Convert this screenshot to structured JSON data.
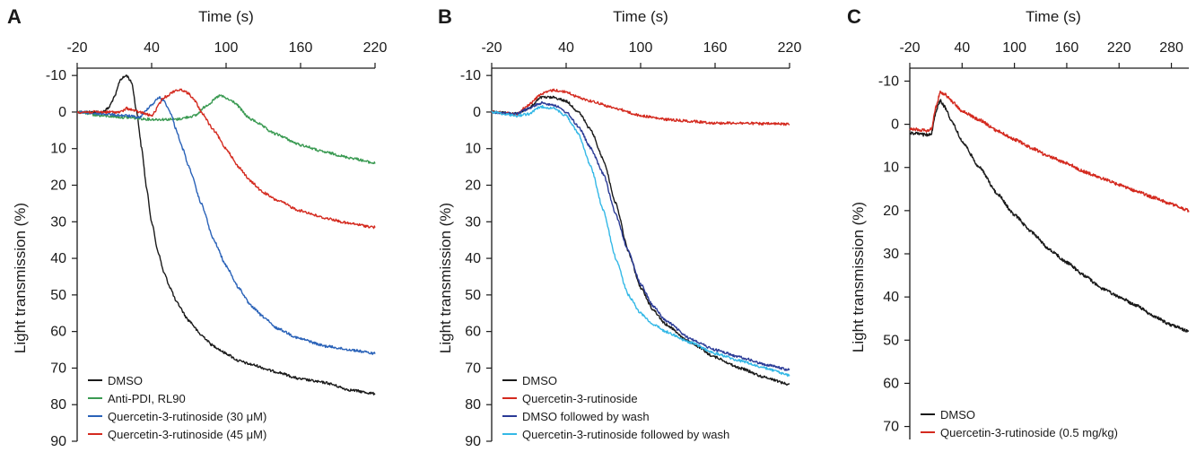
{
  "chart_data": [
    {
      "panel": "A",
      "type": "line",
      "xlabel": "Time (s)",
      "ylabel": "Light transmission (%)",
      "xlim": [
        -20,
        220
      ],
      "ylim": [
        -12,
        90
      ],
      "y_inverted": true,
      "xaxis_position": "top",
      "xticks": [
        -20,
        40,
        100,
        160,
        220
      ],
      "yticks": [
        -10,
        0,
        10,
        20,
        30,
        40,
        50,
        60,
        70,
        80,
        90
      ],
      "legend_position": "bottom-left",
      "series": [
        {
          "name": "DMSO",
          "color": "#1a1a1a",
          "x": [
            -20,
            0,
            5,
            10,
            15,
            20,
            24,
            28,
            32,
            36,
            40,
            45,
            50,
            55,
            60,
            70,
            80,
            90,
            100,
            110,
            120,
            140,
            160,
            180,
            200,
            220
          ],
          "y": [
            0,
            0,
            -1,
            -4,
            -9,
            -10,
            -8,
            0,
            10,
            21,
            30,
            38,
            44,
            48,
            52,
            57,
            61,
            64,
            66,
            68,
            69,
            71,
            73,
            74,
            76,
            77
          ]
        },
        {
          "name": "Anti-PDI, RL90",
          "color": "#3a9a52",
          "x": [
            -20,
            0,
            20,
            40,
            60,
            75,
            85,
            95,
            105,
            120,
            140,
            160,
            180,
            200,
            220
          ],
          "y": [
            0,
            1,
            1.5,
            2,
            2,
            1,
            -2,
            -4.5,
            -3,
            2,
            6,
            9,
            11,
            12.5,
            14
          ]
        },
        {
          "name": "Quercetin-3-rutinoside (30 μM)",
          "color": "#2a62b8",
          "x": [
            -20,
            0,
            20,
            30,
            40,
            46,
            50,
            55,
            60,
            65,
            70,
            80,
            90,
            100,
            110,
            120,
            130,
            140,
            160,
            180,
            200,
            220
          ],
          "y": [
            0,
            0.5,
            1,
            1.5,
            -2,
            -4,
            -3,
            0,
            5,
            10,
            15,
            25,
            35,
            42,
            48,
            53,
            56,
            59,
            62,
            64,
            65,
            66
          ]
        },
        {
          "name": "Quercetin-3-rutinoside (45 μM)",
          "color": "#d42a1f",
          "x": [
            -20,
            0,
            15,
            20,
            30,
            40,
            50,
            60,
            65,
            70,
            75,
            80,
            90,
            100,
            110,
            120,
            130,
            140,
            160,
            180,
            200,
            220
          ],
          "y": [
            0,
            0,
            0,
            -1,
            0,
            1,
            -4,
            -6,
            -6,
            -5,
            -3,
            0,
            5,
            10,
            15,
            19,
            22,
            24,
            27,
            29,
            30.5,
            31.5
          ]
        }
      ]
    },
    {
      "panel": "B",
      "type": "line",
      "xlabel": "Time (s)",
      "ylabel": "Light transmission (%)",
      "xlim": [
        -20,
        220
      ],
      "ylim": [
        -12,
        90
      ],
      "y_inverted": true,
      "xaxis_position": "top",
      "xticks": [
        -20,
        40,
        100,
        160,
        220
      ],
      "yticks": [
        -10,
        0,
        10,
        20,
        30,
        40,
        50,
        60,
        70,
        80,
        90
      ],
      "legend_position": "bottom-left",
      "series": [
        {
          "name": "DMSO",
          "color": "#1a1a1a",
          "x": [
            -20,
            0,
            10,
            20,
            30,
            40,
            50,
            60,
            70,
            80,
            90,
            100,
            110,
            120,
            140,
            160,
            180,
            200,
            220
          ],
          "y": [
            0,
            0.5,
            -1,
            -4,
            -4,
            -3,
            0,
            5,
            13,
            25,
            38,
            48,
            54,
            58,
            63,
            67,
            70,
            72.5,
            74.5
          ]
        },
        {
          "name": "Quercetin-3-rutinoside",
          "color": "#d42a1f",
          "x": [
            -20,
            0,
            10,
            20,
            30,
            40,
            50,
            60,
            80,
            100,
            120,
            140,
            160,
            180,
            200,
            220
          ],
          "y": [
            0,
            0.5,
            -2,
            -5,
            -6,
            -5.5,
            -4,
            -3,
            -1,
            1,
            2,
            2.5,
            3,
            3,
            3.2,
            3.3
          ]
        },
        {
          "name": "DMSO followed by wash",
          "color": "#2a3a96",
          "x": [
            -20,
            0,
            10,
            20,
            30,
            40,
            50,
            60,
            70,
            80,
            90,
            100,
            110,
            120,
            140,
            160,
            180,
            200,
            220
          ],
          "y": [
            0,
            0.5,
            -1,
            -2.5,
            -2,
            0,
            4,
            10,
            17,
            28,
            38,
            47,
            53,
            57,
            62,
            65,
            67,
            69,
            70.5
          ]
        },
        {
          "name": "Quercetin-3-rutinoside followed by wash",
          "color": "#34b8e6",
          "x": [
            -20,
            0,
            10,
            20,
            30,
            40,
            50,
            60,
            70,
            80,
            90,
            100,
            110,
            120,
            140,
            160,
            180,
            200,
            220
          ],
          "y": [
            0,
            1,
            0.5,
            -1.5,
            -1,
            1,
            6,
            15,
            27,
            40,
            50,
            55,
            58,
            60,
            63,
            66,
            68,
            70,
            72
          ]
        }
      ]
    },
    {
      "panel": "C",
      "type": "line",
      "xlabel": "Time (s)",
      "ylabel": "Light transmission (%)",
      "xlim": [
        -20,
        300
      ],
      "ylim": [
        -13,
        73
      ],
      "y_inverted": true,
      "xaxis_position": "top",
      "xticks": [
        -20,
        40,
        100,
        160,
        220,
        280
      ],
      "yticks": [
        -10,
        0,
        10,
        20,
        30,
        40,
        50,
        60,
        70
      ],
      "legend_position": "bottom-left",
      "series": [
        {
          "name": "DMSO",
          "color": "#1a1a1a",
          "x": [
            -20,
            0,
            5,
            10,
            15,
            20,
            30,
            40,
            60,
            80,
            100,
            120,
            140,
            160,
            180,
            200,
            220,
            240,
            260,
            280,
            300
          ],
          "y": [
            2,
            2.5,
            2,
            -3,
            -5.5,
            -4,
            0,
            4,
            10,
            16,
            21,
            25,
            29,
            32,
            35,
            38,
            40,
            42,
            44.5,
            46.5,
            48
          ]
        },
        {
          "name": "Quercetin-3-rutinoside (0.5 mg/kg)",
          "color": "#d42a1f",
          "x": [
            -20,
            0,
            5,
            10,
            15,
            20,
            30,
            40,
            60,
            80,
            100,
            120,
            140,
            160,
            180,
            200,
            220,
            240,
            260,
            280,
            300
          ],
          "y": [
            1,
            1.5,
            1,
            -4,
            -7.5,
            -7,
            -5,
            -3,
            -1,
            1.5,
            3.5,
            5.5,
            7.5,
            9,
            11,
            12.5,
            14,
            15.5,
            17,
            18.5,
            20
          ]
        }
      ]
    }
  ]
}
